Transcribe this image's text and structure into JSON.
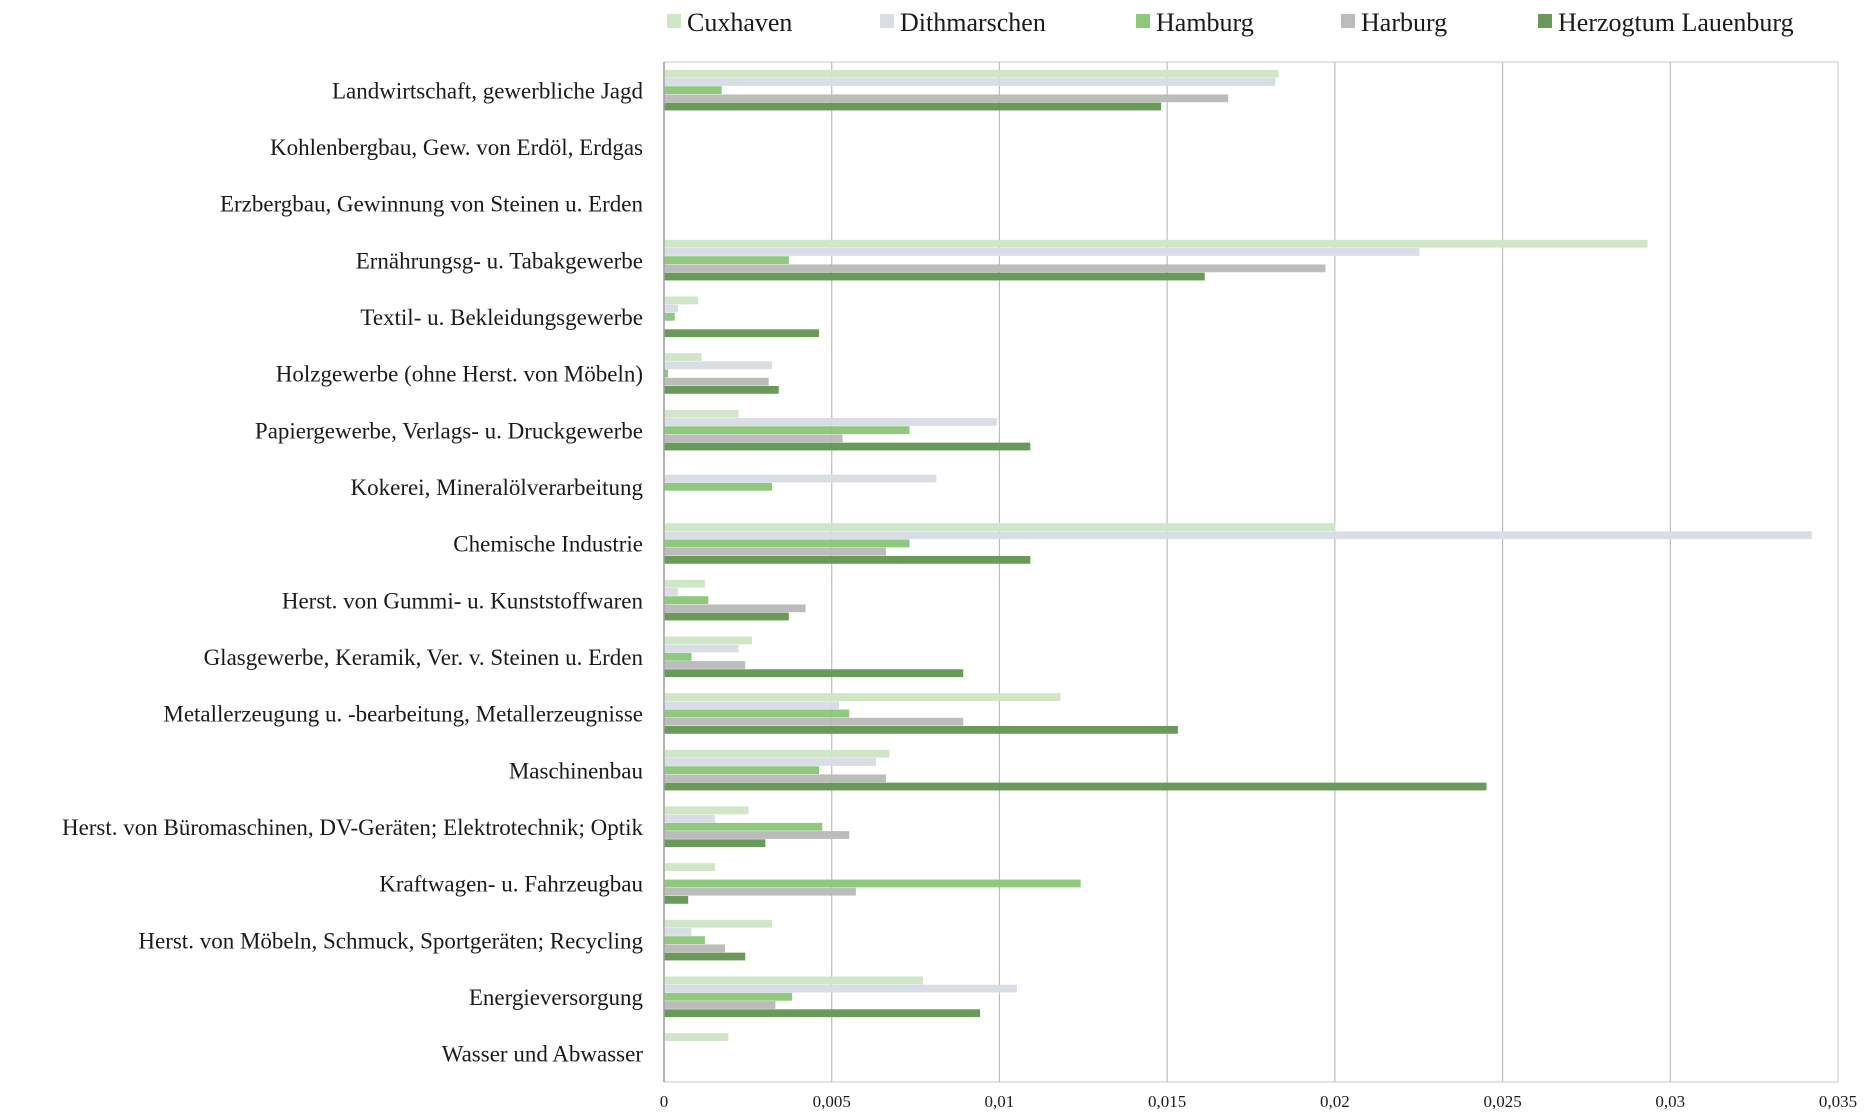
{
  "chart_data": {
    "type": "bar",
    "orientation": "horizontal",
    "title": "",
    "xlabel": "",
    "ylabel": "",
    "xlim": [
      0,
      0.035
    ],
    "x_ticks": [
      "0",
      "0,005",
      "0,01",
      "0,015",
      "0,02",
      "0,025",
      "0,03",
      "0,035"
    ],
    "x_tick_values": [
      0,
      0.005,
      0.01,
      0.015,
      0.02,
      0.025,
      0.03,
      0.035
    ],
    "grid": "vertical",
    "legend_position": "top",
    "categories": [
      "Landwirtschaft, gewerbliche Jagd",
      "Kohlenbergbau, Gew. von Erdöl, Erdgas",
      "Erzbergbau, Gewinnung von Steinen u. Erden",
      "Ernährungsg- u. Tabakgewerbe",
      "Textil- u. Bekleidungsgewerbe",
      "Holzgewerbe (ohne Herst. von Möbeln)",
      "Papiergewerbe, Verlags- u. Druckgewerbe",
      "Kokerei, Mineralölverarbeitung",
      "Chemische Industrie",
      "Herst. von Gummi- u. Kunststoffwaren",
      "Glasgewerbe, Keramik, Ver. v. Steinen u. Erden",
      "Metallerzeugung u. -bearbeitung, Metallerzeugnisse",
      "Maschinenbau",
      "Herst. von Büromaschinen, DV-Geräten; Elektrotechnik; Optik",
      "Kraftwagen- u. Fahrzeugbau",
      "Herst. von Möbeln, Schmuck, Sportgeräten; Recycling",
      "Energieversorgung",
      "Wasser und Abwasser"
    ],
    "series": [
      {
        "name": "Cuxhaven",
        "color": "#cfe6c7",
        "values": [
          0.0183,
          0,
          0,
          0.0293,
          0.001,
          0.0011,
          0.0022,
          0,
          0.02,
          0.0012,
          0.0026,
          0.0118,
          0.0067,
          0.0025,
          0.0015,
          0.0032,
          0.0077,
          0.0019
        ]
      },
      {
        "name": "Dithmarschen",
        "color": "#d9dde6",
        "values": [
          0.0182,
          0,
          0,
          0.0225,
          0.0004,
          0.0032,
          0.0099,
          0.0081,
          0.0342,
          0.0004,
          0.0022,
          0.0052,
          0.0063,
          0.0015,
          0,
          0.0008,
          0.0105,
          0
        ]
      },
      {
        "name": "Hamburg",
        "color": "#8ec97e",
        "values": [
          0.0017,
          0,
          0,
          0.0037,
          0.0003,
          0.0001,
          0.0073,
          0.0032,
          0.0073,
          0.0013,
          0.0008,
          0.0055,
          0.0046,
          0.0047,
          0.0124,
          0.0012,
          0.0038,
          0
        ]
      },
      {
        "name": "Harburg",
        "color": "#bcbcbc",
        "values": [
          0.0168,
          0,
          0,
          0.0197,
          0,
          0.0031,
          0.0053,
          0,
          0.0066,
          0.0042,
          0.0024,
          0.0089,
          0.0066,
          0.0055,
          0.0057,
          0.0018,
          0.0033,
          0
        ]
      },
      {
        "name": "Herzogtum Lauenburg",
        "color": "#6a9a5a",
        "values": [
          0.0148,
          0,
          0,
          0.0161,
          0.0046,
          0.0034,
          0.0109,
          0,
          0.0109,
          0.0037,
          0.0089,
          0.0153,
          0.0245,
          0.003,
          0.0007,
          0.0024,
          0.0094,
          0
        ]
      }
    ]
  }
}
